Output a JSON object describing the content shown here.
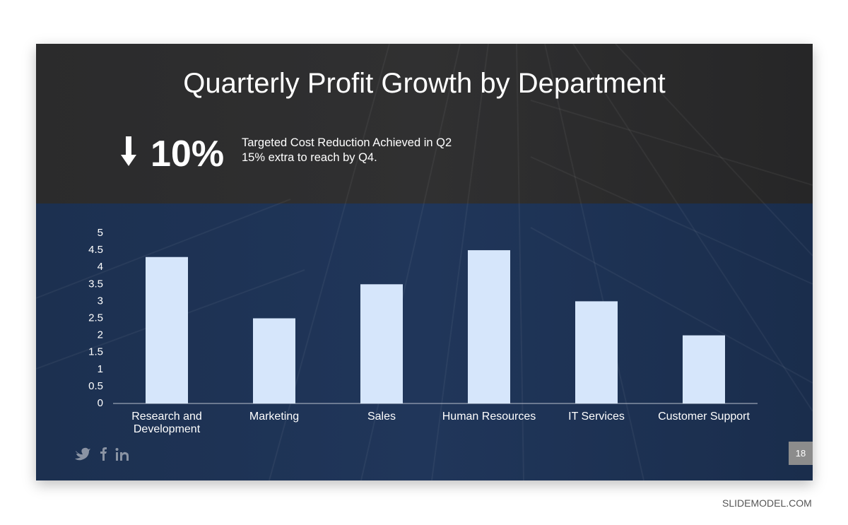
{
  "title": "Quarterly Profit Growth by Department",
  "kpi": {
    "value": "10%",
    "lines": [
      "Targeted Cost Reduction Achieved in Q2",
      "15% extra to reach by Q4."
    ]
  },
  "chart_data": {
    "type": "bar",
    "categories": [
      "Research and Development",
      "Marketing",
      "Sales",
      "Human Resources",
      "IT Services",
      "Customer Support"
    ],
    "values": [
      4.3,
      2.5,
      3.5,
      4.5,
      3,
      2
    ],
    "color": "#d6e6fb",
    "ylim": [
      0,
      5
    ],
    "yticks": [
      0,
      0.5,
      1,
      1.5,
      2,
      2.5,
      3,
      3.5,
      4,
      4.5,
      5
    ],
    "grid": false
  },
  "footer": {
    "page": "18",
    "brand": "SLIDEMODEL.COM"
  }
}
